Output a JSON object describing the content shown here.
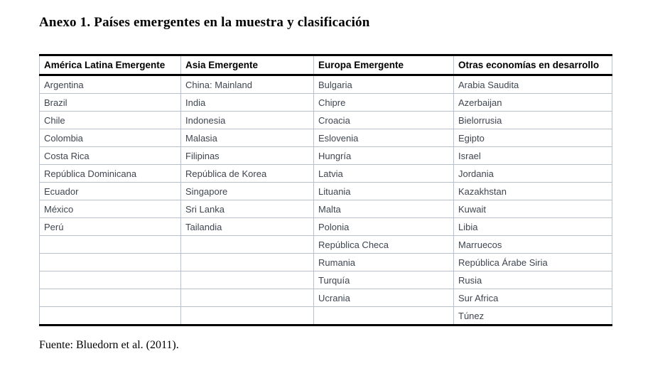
{
  "title": "Anexo 1. Países emergentes en la muestra y clasificación",
  "table": {
    "columns": [
      "América Latina Emergente",
      "Asia Emergente",
      "Europa Emergente",
      "Otras economías en desarrollo"
    ],
    "rows": [
      [
        "Argentina",
        "China: Mainland",
        "Bulgaria",
        "Arabia Saudita"
      ],
      [
        "Brazil",
        "India",
        "Chipre",
        "Azerbaijan"
      ],
      [
        "Chile",
        "Indonesia",
        "Croacia",
        "Bielorrusia"
      ],
      [
        "Colombia",
        "Malasia",
        "Eslovenia",
        "Egipto"
      ],
      [
        "Costa Rica",
        "Filipinas",
        "Hungría",
        "Israel"
      ],
      [
        "República Dominicana",
        "República de Korea",
        "Latvia",
        "Jordania"
      ],
      [
        "Ecuador",
        "Singapore",
        "Lituania",
        "Kazakhstan"
      ],
      [
        "México",
        "Sri Lanka",
        "Malta",
        "Kuwait"
      ],
      [
        "Perú",
        "Tailandia",
        "Polonia",
        "Libia"
      ],
      [
        "",
        "",
        "República Checa",
        "Marruecos"
      ],
      [
        "",
        "",
        "Rumania",
        "República Árabe Siria"
      ],
      [
        "",
        "",
        "Turquía",
        "Rusia"
      ],
      [
        "",
        "",
        "Ucrania",
        "Sur Africa"
      ],
      [
        "",
        "",
        "",
        "Túnez"
      ]
    ]
  },
  "source": "Fuente: Bluedorn et al. (2011).",
  "colors": {
    "background": "#ffffff",
    "cell_border": "#b6c1cc",
    "heavy_rule": "#000000",
    "body_text": "#3f4650",
    "header_text": "#000000"
  }
}
